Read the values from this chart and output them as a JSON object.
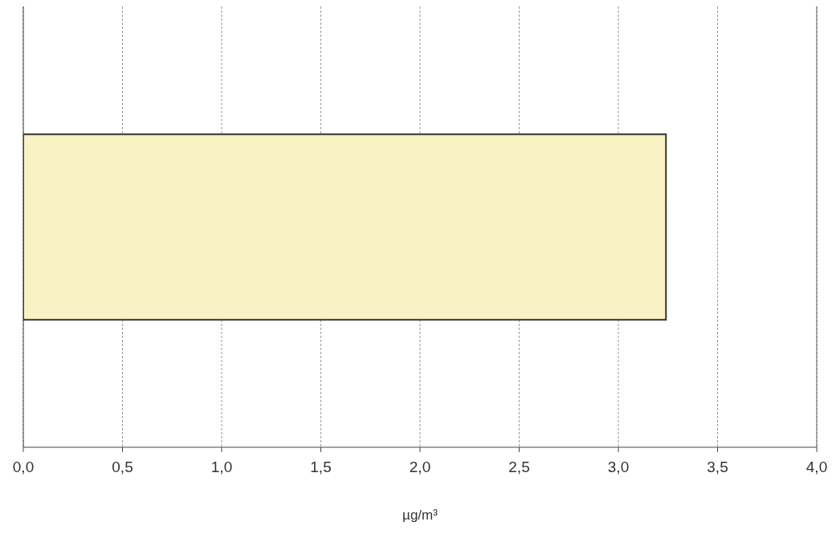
{
  "chart_data": {
    "type": "bar",
    "orientation": "horizontal",
    "xlabel": "µg/m³",
    "categories": [
      null
    ],
    "values": [
      3.24
    ],
    "color": "#f8f2c4",
    "xlim": [
      0,
      4
    ],
    "xticks": [
      {
        "value": 0,
        "label": "0,0"
      },
      {
        "value": 0.5,
        "label": "0,5"
      },
      {
        "value": 1,
        "label": "1,0"
      },
      {
        "value": 1.5,
        "label": "1,5"
      },
      {
        "value": 2,
        "label": "2,0"
      },
      {
        "value": 2.5,
        "label": "2,5"
      },
      {
        "value": 3,
        "label": "3,0"
      },
      {
        "value": 3.5,
        "label": "3,5"
      },
      {
        "value": 4,
        "label": "4,0"
      }
    ],
    "grid": "x"
  }
}
